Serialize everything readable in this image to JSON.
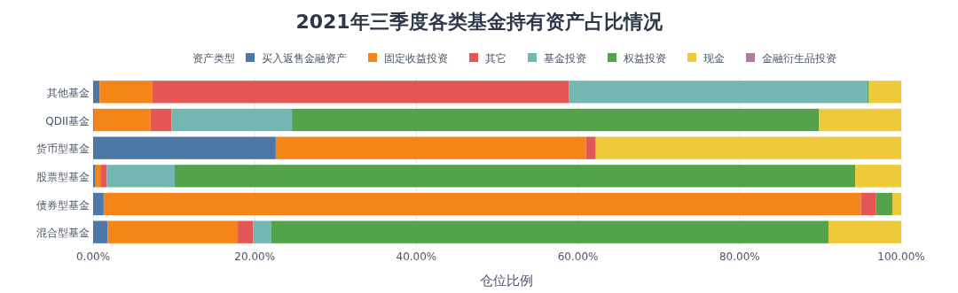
{
  "chart_data": {
    "type": "bar",
    "orientation": "horizontal",
    "stacked": true,
    "title": "2021年三季度各类基金持有资产占比情况",
    "xlabel": "仓位比例",
    "legend_title": "资产类型",
    "legend": "top",
    "grid": "x",
    "categories": [
      "其他基金",
      "QDII基金",
      "货币型基金",
      "股票型基金",
      "债券型基金",
      "混合型基金"
    ],
    "xlim": [
      0,
      100
    ],
    "xticks": [
      {
        "value": 0,
        "label": "0.00%"
      },
      {
        "value": 20,
        "label": "20.00%"
      },
      {
        "value": 40,
        "label": "40.00%"
      },
      {
        "value": 60,
        "label": "60.00%"
      },
      {
        "value": 80,
        "label": "80.00%"
      },
      {
        "value": 100,
        "label": "100.00%"
      }
    ],
    "series": [
      {
        "name": "买入返售金融资产",
        "color": "#4c78a8",
        "values": [
          0.8,
          0.1,
          22.6,
          0.3,
          1.3,
          1.8
        ]
      },
      {
        "name": "固定收益投资",
        "color": "#f58518",
        "values": [
          6.5,
          7.0,
          38.4,
          0.6,
          93.7,
          16.1
        ]
      },
      {
        "name": "其它",
        "color": "#e45756",
        "values": [
          51.6,
          2.6,
          1.2,
          0.8,
          1.9,
          1.9
        ]
      },
      {
        "name": "基金投资",
        "color": "#72b7b2",
        "values": [
          36.9,
          14.9,
          0,
          8.4,
          0,
          2.2
        ]
      },
      {
        "name": "权益投资",
        "color": "#54a24b",
        "values": [
          0.2,
          65.2,
          0,
          84.2,
          2.0,
          69.0
        ]
      },
      {
        "name": "现金",
        "color": "#eeca3b",
        "values": [
          4.0,
          10.2,
          37.8,
          5.7,
          1.1,
          9.0
        ]
      },
      {
        "name": "金融衍生品投资",
        "color": "#b279a2",
        "values": [
          0,
          0,
          0,
          0,
          0,
          0
        ]
      }
    ]
  }
}
